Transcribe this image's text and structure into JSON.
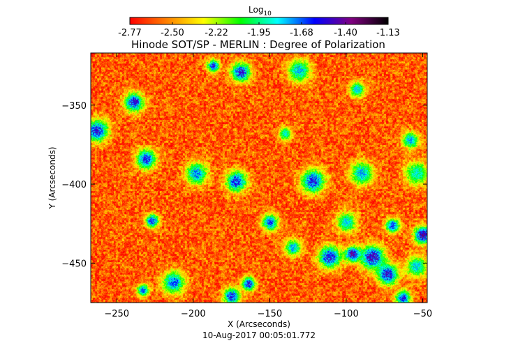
{
  "chart_data": {
    "type": "heatmap",
    "title": "Hinode SOT/SP - MERLIN : Degree of Polarization",
    "xlabel": "X (Arcseconds)",
    "ylabel": "Y (Arcseconds)",
    "timestamp": "10-Aug-2017 00:05:01.772",
    "xlim": [
      -267,
      -47
    ],
    "ylim": [
      -475,
      -317
    ],
    "x_ticks": [
      -250,
      -200,
      -150,
      -100,
      -50
    ],
    "y_ticks": [
      -350,
      -400,
      -450
    ],
    "colorbar": {
      "label_base": "Log",
      "label_sub": "10",
      "min": -2.77,
      "max": -1.13,
      "ticks": [
        -2.77,
        -2.5,
        -2.22,
        -1.95,
        -1.68,
        -1.4,
        -1.13
      ],
      "tick_labels": [
        "-2.77",
        "-2.50",
        "-2.22",
        "-1.95",
        "-1.68",
        "-1.40",
        "-1.13"
      ],
      "colormap": "rainbow",
      "colors": [
        "#ff0000",
        "#ff8000",
        "#ffff00",
        "#00ff00",
        "#00ffff",
        "#0000ff",
        "#800080",
        "#000000"
      ]
    },
    "background_level": -2.6,
    "features": [
      {
        "x": -187,
        "y": -325,
        "level": -1.5
      },
      {
        "x": -169,
        "y": -329,
        "level": -1.45
      },
      {
        "x": -131,
        "y": -328,
        "level": -1.7
      },
      {
        "x": -239,
        "y": -348,
        "level": -1.45
      },
      {
        "x": -93,
        "y": -340,
        "level": -1.75
      },
      {
        "x": -263,
        "y": -366,
        "level": -1.45
      },
      {
        "x": -140,
        "y": -368,
        "level": -1.8
      },
      {
        "x": -58,
        "y": -372,
        "level": -1.7
      },
      {
        "x": -231,
        "y": -384,
        "level": -1.5
      },
      {
        "x": -198,
        "y": -393,
        "level": -1.65
      },
      {
        "x": -172,
        "y": -398,
        "level": -1.5
      },
      {
        "x": -122,
        "y": -398,
        "level": -1.5
      },
      {
        "x": -90,
        "y": -393,
        "level": -1.7
      },
      {
        "x": -54,
        "y": -393,
        "level": -1.8
      },
      {
        "x": -227,
        "y": -423,
        "level": -1.5
      },
      {
        "x": -150,
        "y": -424,
        "level": -1.55
      },
      {
        "x": -135,
        "y": -440,
        "level": -1.7
      },
      {
        "x": -100,
        "y": -424,
        "level": -1.75
      },
      {
        "x": -70,
        "y": -426,
        "level": -1.55
      },
      {
        "x": -50,
        "y": -432,
        "level": -1.3
      },
      {
        "x": -96,
        "y": -444,
        "level": -1.35
      },
      {
        "x": -83,
        "y": -446,
        "level": -1.4
      },
      {
        "x": -111,
        "y": -446,
        "level": -1.45
      },
      {
        "x": -54,
        "y": -452,
        "level": -1.75
      },
      {
        "x": -73,
        "y": -457,
        "level": -1.45
      },
      {
        "x": -164,
        "y": -463,
        "level": -1.45
      },
      {
        "x": -213,
        "y": -462,
        "level": -1.6
      },
      {
        "x": -233,
        "y": -467,
        "level": -1.6
      },
      {
        "x": -175,
        "y": -471,
        "level": -1.5
      },
      {
        "x": -63,
        "y": -472,
        "level": -1.5
      }
    ]
  }
}
